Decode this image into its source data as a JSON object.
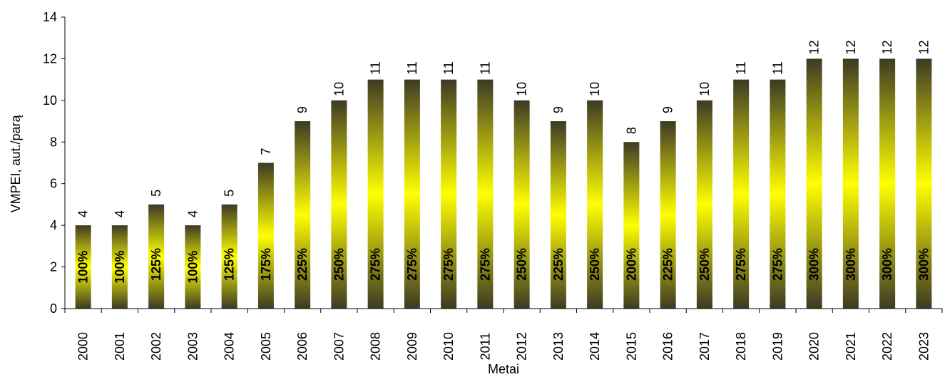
{
  "chart_data": {
    "type": "bar",
    "xlabel": "Metai",
    "ylabel": "VMPEI, aut./parą",
    "ylim": [
      0,
      14
    ],
    "yticks": [
      "0",
      "2",
      "4",
      "6",
      "8",
      "10",
      "12",
      "14"
    ],
    "grid": false,
    "legend": "none",
    "categories": [
      "2000",
      "2001",
      "2002",
      "2003",
      "2004",
      "2005",
      "2006",
      "2007",
      "2008",
      "2009",
      "2010",
      "2011",
      "2012",
      "2013",
      "2014",
      "2015",
      "2016",
      "2017",
      "2018",
      "2019",
      "2020",
      "2021",
      "2022",
      "2023"
    ],
    "values": [
      4,
      4,
      5,
      4,
      5,
      7,
      9,
      10,
      11,
      11,
      11,
      11,
      10,
      9,
      10,
      8,
      9,
      10,
      11,
      11,
      12,
      12,
      12,
      12
    ],
    "percent_labels": [
      "100%",
      "100%",
      "125%",
      "100%",
      "125%",
      "175%",
      "225%",
      "250%",
      "275%",
      "275%",
      "275%",
      "275%",
      "250%",
      "225%",
      "250%",
      "200%",
      "225%",
      "250%",
      "275%",
      "275%",
      "300%",
      "300%",
      "300%",
      "300%"
    ],
    "colors": {
      "bar_dark": "#3d3a24",
      "bar_bright": "#ffff00",
      "axis": "#000000"
    }
  }
}
